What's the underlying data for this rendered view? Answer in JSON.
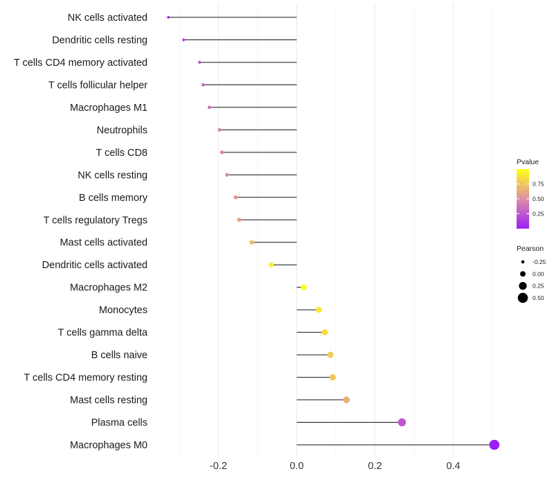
{
  "chart_data": {
    "type": "lollipop",
    "title": "",
    "xlabel": "",
    "ylabel": "",
    "xlim": [
      -0.36,
      0.53
    ],
    "xticks": [
      -0.2,
      0.0,
      0.2,
      0.4
    ],
    "xtick_labels": [
      "-0.2",
      "0.0",
      "0.2",
      "0.4"
    ],
    "grid": true,
    "categories": [
      "NK cells activated",
      "Dendritic cells resting",
      "T cells CD4 memory activated",
      "T cells follicular helper",
      "Macrophages M1",
      "Neutrophils",
      "T cells CD8",
      "NK cells resting",
      "B cells memory",
      "T cells regulatory  Tregs ",
      "Mast cells activated",
      "Dendritic cells activated",
      "Macrophages M2",
      "Monocytes",
      "T cells gamma delta",
      "B cells naive",
      "T cells CD4 memory resting",
      "Mast cells resting",
      "Plasma cells",
      "Macrophages M0"
    ],
    "pearson": [
      -0.328,
      -0.289,
      -0.248,
      -0.239,
      -0.223,
      -0.197,
      -0.191,
      -0.178,
      -0.156,
      -0.147,
      -0.115,
      -0.065,
      0.018,
      0.057,
      0.072,
      0.086,
      0.092,
      0.127,
      0.269,
      0.505
    ],
    "pvalue": [
      0.02,
      0.17,
      0.31,
      0.34,
      0.38,
      0.45,
      0.46,
      0.5,
      0.56,
      0.59,
      0.72,
      0.93,
      1.0,
      0.9,
      0.85,
      0.78,
      0.76,
      0.65,
      0.25,
      0.0
    ],
    "color_legend": {
      "title": "Pvalue",
      "position": "right",
      "ticks": [
        0.25,
        0.5,
        0.75
      ],
      "tick_labels": [
        "0.25",
        "0.50",
        "0.75"
      ],
      "low_color": "#9b1ff5",
      "mid_color": "#de8fa6",
      "high_color": "#ffff14"
    },
    "size_legend": {
      "title": "Pearson",
      "position": "right",
      "values": [
        -0.25,
        0.0,
        0.25,
        0.5
      ],
      "labels": [
        "-0.25",
        "0.00",
        "0.25",
        "0.50"
      ]
    }
  }
}
